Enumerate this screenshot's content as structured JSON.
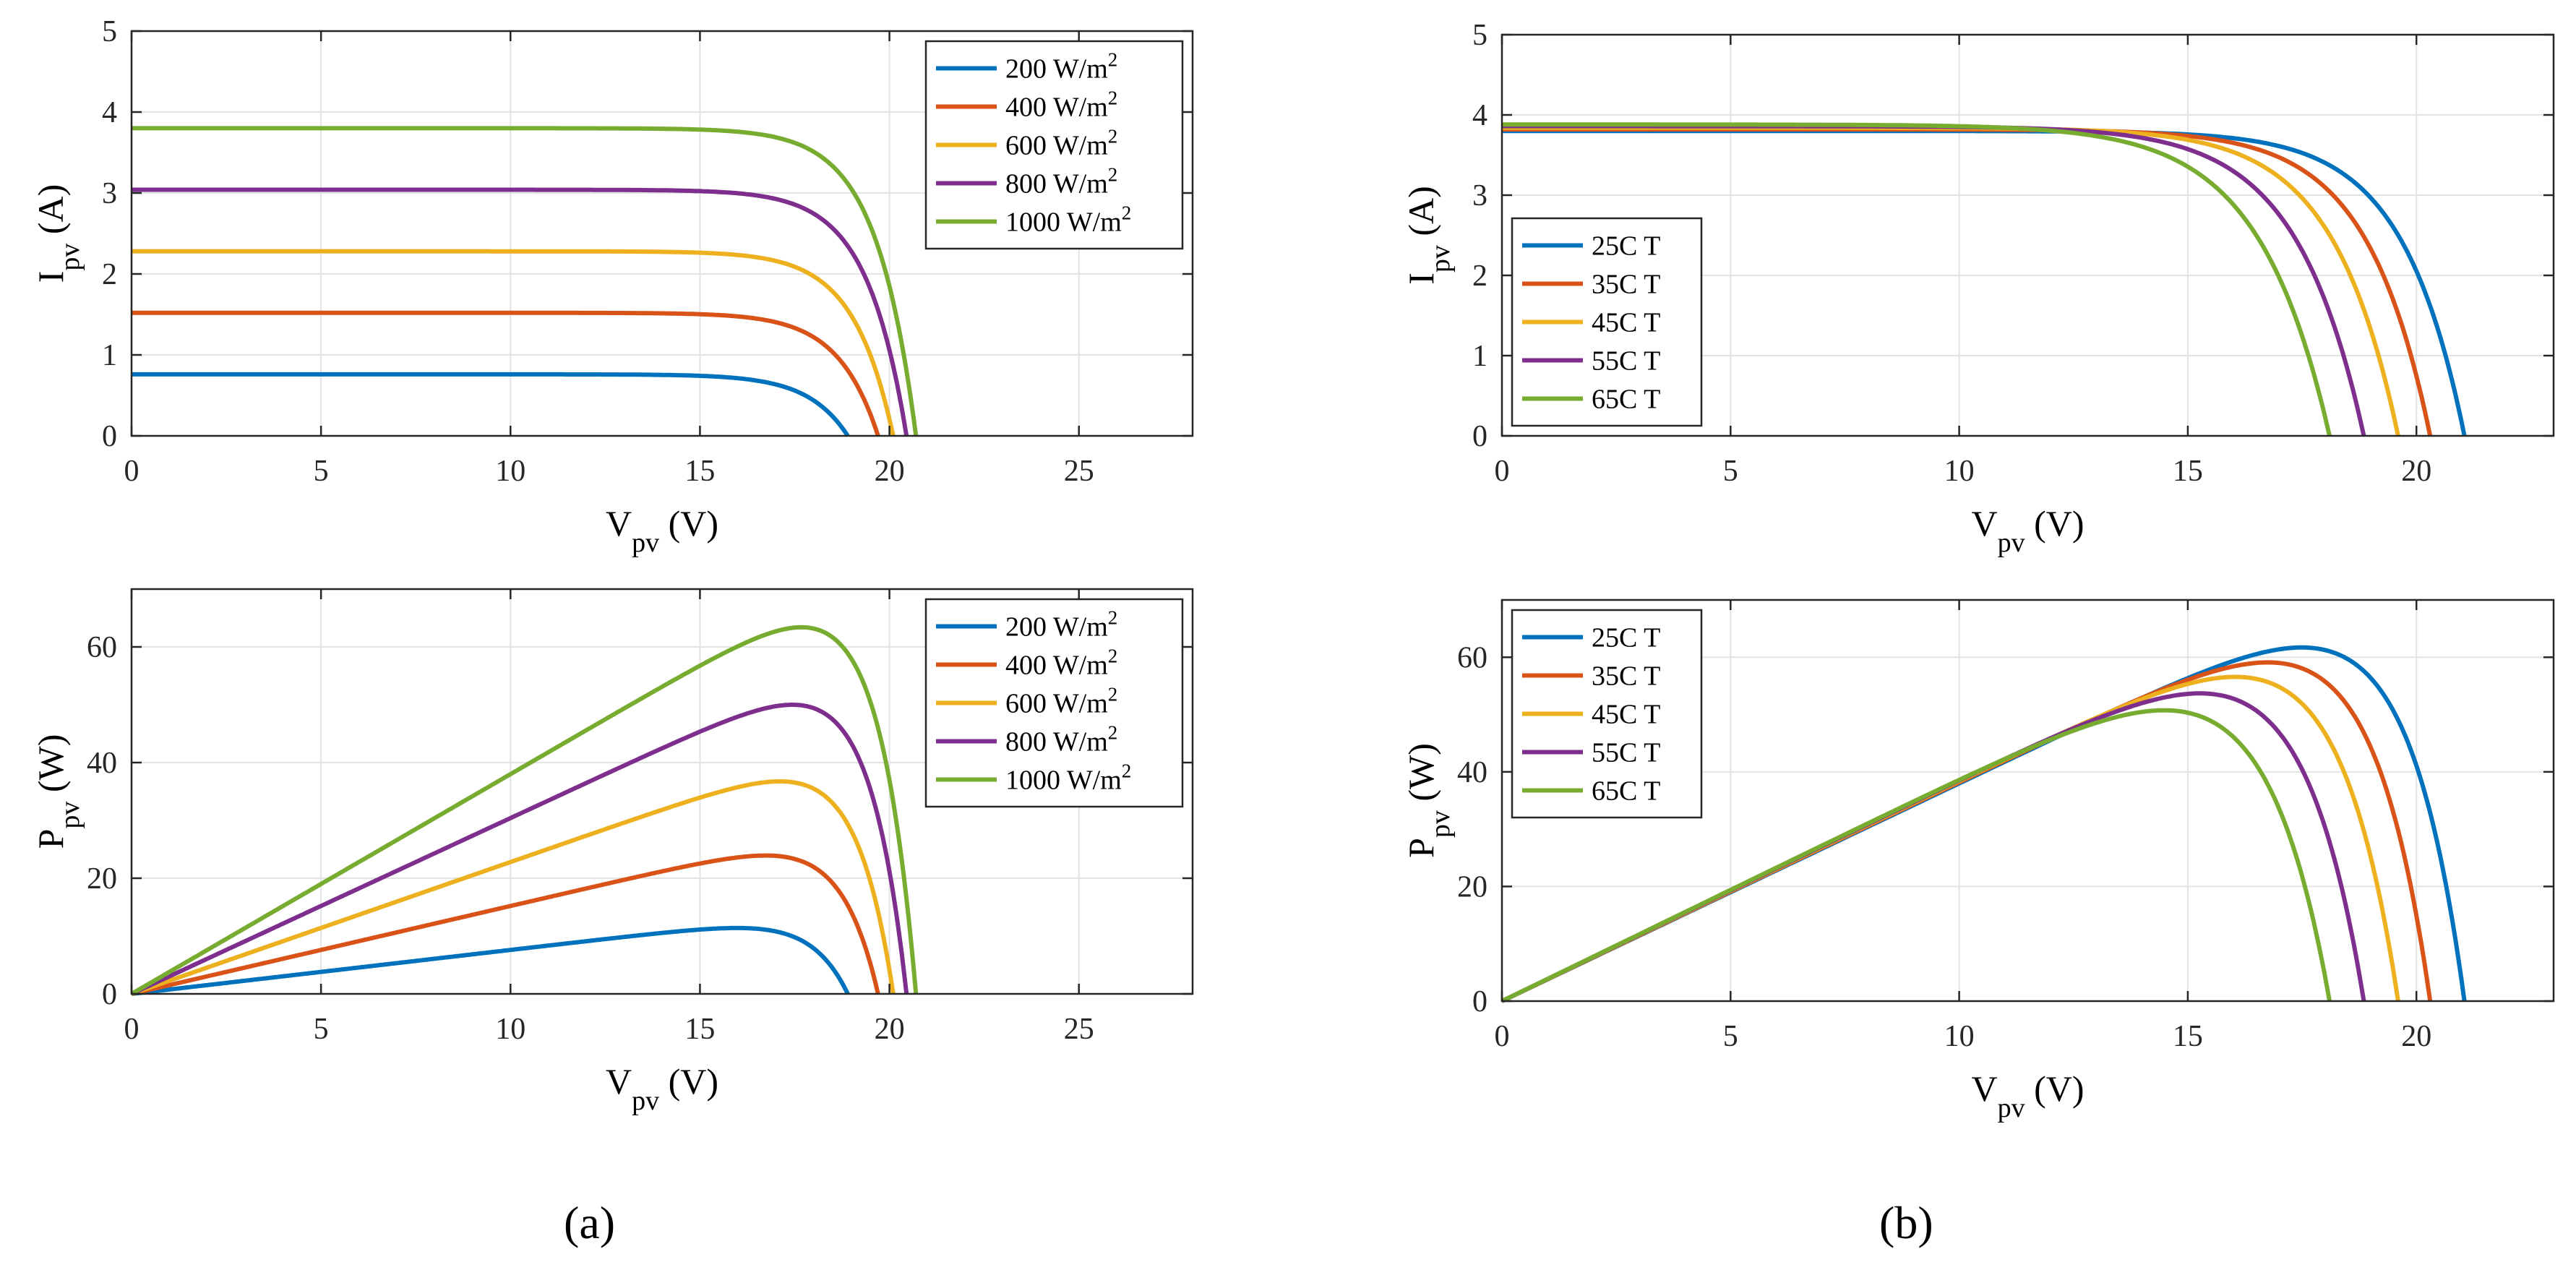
{
  "colors": {
    "c1": "#0072BD",
    "c2": "#D95319",
    "c3": "#EDB120",
    "c4": "#7E2F8E",
    "c5": "#77AC30",
    "grid": "#e3e3e3",
    "axis": "#262626"
  },
  "captions": {
    "a": "(a)",
    "b": "(b)"
  },
  "chart_data": [
    {
      "id": "a-iv",
      "type": "line",
      "model": "iv",
      "xlabel_main": "V",
      "xlabel_sub": "pv",
      "xlabel_unit": "(V)",
      "ylabel_main": "I",
      "ylabel_sub": "pv",
      "ylabel_unit": "(A)",
      "xlim": [
        0,
        28
      ],
      "ylim": [
        0,
        5
      ],
      "xticks": [
        0,
        5,
        10,
        15,
        20,
        25
      ],
      "yticks": [
        0,
        1,
        2,
        3,
        4,
        5
      ],
      "legend_position": "top-right",
      "series": [
        {
          "name": "200 W/m",
          "sup": "2",
          "color_key": "c1",
          "isc": 0.76,
          "voc": 18.9,
          "vt": 1.05
        },
        {
          "name": "400 W/m",
          "sup": "2",
          "color_key": "c2",
          "isc": 1.52,
          "voc": 19.7,
          "vt": 1.05
        },
        {
          "name": "600 W/m",
          "sup": "2",
          "color_key": "c3",
          "isc": 2.28,
          "voc": 20.1,
          "vt": 1.05
        },
        {
          "name": "800 W/m",
          "sup": "2",
          "color_key": "c4",
          "isc": 3.04,
          "voc": 20.45,
          "vt": 1.05
        },
        {
          "name": "1000 W/m",
          "sup": "2",
          "color_key": "c5",
          "isc": 3.8,
          "voc": 20.7,
          "vt": 1.05
        }
      ]
    },
    {
      "id": "a-pv",
      "type": "line",
      "model": "pv",
      "xlabel_main": "V",
      "xlabel_sub": "pv",
      "xlabel_unit": "(V)",
      "ylabel_main": "P",
      "ylabel_sub": "pv",
      "ylabel_unit": "(W)",
      "xlim": [
        0,
        28
      ],
      "ylim": [
        0,
        70
      ],
      "xticks": [
        0,
        5,
        10,
        15,
        20,
        25
      ],
      "yticks": [
        0,
        20,
        40,
        60
      ],
      "legend_position": "top-right",
      "series": [
        {
          "name": "200 W/m",
          "sup": "2",
          "color_key": "c1",
          "isc": 0.76,
          "voc": 18.9,
          "vt": 1.05
        },
        {
          "name": "400 W/m",
          "sup": "2",
          "color_key": "c2",
          "isc": 1.52,
          "voc": 19.7,
          "vt": 1.05
        },
        {
          "name": "600 W/m",
          "sup": "2",
          "color_key": "c3",
          "isc": 2.28,
          "voc": 20.1,
          "vt": 1.05
        },
        {
          "name": "800 W/m",
          "sup": "2",
          "color_key": "c4",
          "isc": 3.04,
          "voc": 20.45,
          "vt": 1.05
        },
        {
          "name": "1000 W/m",
          "sup": "2",
          "color_key": "c5",
          "isc": 3.8,
          "voc": 20.7,
          "vt": 1.05
        }
      ]
    },
    {
      "id": "b-iv",
      "type": "line",
      "model": "iv",
      "xlabel_main": "V",
      "xlabel_sub": "pv",
      "xlabel_unit": "(V)",
      "ylabel_main": "I",
      "ylabel_sub": "pv",
      "ylabel_unit": "(A)",
      "xlim": [
        0,
        23
      ],
      "ylim": [
        0,
        5
      ],
      "xticks": [
        0,
        5,
        10,
        15,
        20
      ],
      "yticks": [
        0,
        1,
        2,
        3,
        4,
        5
      ],
      "legend_position": "bottom-left",
      "series": [
        {
          "name": "25C T",
          "sup": "",
          "color_key": "c1",
          "isc": 3.8,
          "voc": 21.05,
          "vt": 1.35
        },
        {
          "name": "35C T",
          "sup": "",
          "color_key": "c2",
          "isc": 3.82,
          "voc": 20.3,
          "vt": 1.38
        },
        {
          "name": "45C T",
          "sup": "",
          "color_key": "c3",
          "isc": 3.84,
          "voc": 19.6,
          "vt": 1.42
        },
        {
          "name": "55C T",
          "sup": "",
          "color_key": "c4",
          "isc": 3.86,
          "voc": 18.85,
          "vt": 1.48
        },
        {
          "name": "65C T",
          "sup": "",
          "color_key": "c5",
          "isc": 3.88,
          "voc": 18.1,
          "vt": 1.55
        }
      ]
    },
    {
      "id": "b-pv",
      "type": "line",
      "model": "pv",
      "xlabel_main": "V",
      "xlabel_sub": "pv",
      "xlabel_unit": "(V)",
      "ylabel_main": "P",
      "ylabel_sub": "pv",
      "ylabel_unit": "(W)",
      "xlim": [
        0,
        23
      ],
      "ylim": [
        0,
        70
      ],
      "xticks": [
        0,
        5,
        10,
        15,
        20
      ],
      "yticks": [
        0,
        20,
        40,
        60
      ],
      "legend_position": "top-left",
      "series": [
        {
          "name": "25C T",
          "sup": "",
          "color_key": "c1",
          "isc": 3.8,
          "voc": 21.05,
          "vt": 1.35
        },
        {
          "name": "35C T",
          "sup": "",
          "color_key": "c2",
          "isc": 3.82,
          "voc": 20.3,
          "vt": 1.38
        },
        {
          "name": "45C T",
          "sup": "",
          "color_key": "c3",
          "isc": 3.84,
          "voc": 19.6,
          "vt": 1.42
        },
        {
          "name": "55C T",
          "sup": "",
          "color_key": "c4",
          "isc": 3.86,
          "voc": 18.85,
          "vt": 1.48
        },
        {
          "name": "65C T",
          "sup": "",
          "color_key": "c5",
          "isc": 3.88,
          "voc": 18.1,
          "vt": 1.55
        }
      ]
    }
  ]
}
